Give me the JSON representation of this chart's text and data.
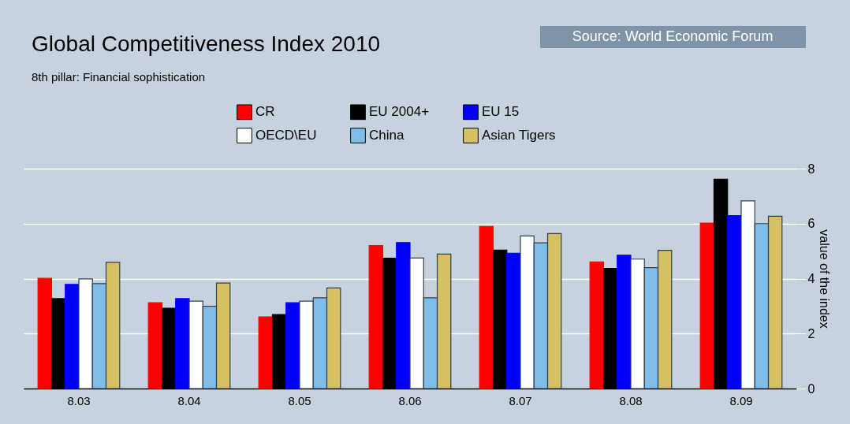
{
  "chart_data": {
    "type": "bar",
    "title": "Global Competitiveness Index 2010",
    "subtitle": "8th pillar: Financial sophistication",
    "ylabel": "value of the index",
    "annotations": [
      "Source: World Economic Forum"
    ],
    "categories": [
      "8.03",
      "8.04",
      "8.05",
      "8.06",
      "8.07",
      "8.08",
      "8.09"
    ],
    "series": [
      {
        "name": "CR",
        "color": "#ff0000",
        "values": [
          4.01,
          3.12,
          2.61,
          5.2,
          5.9,
          4.61,
          6.02
        ]
      },
      {
        "name": "EU 2004+",
        "color": "#000000",
        "values": [
          3.27,
          2.92,
          2.69,
          4.74,
          5.04,
          4.37,
          7.62
        ]
      },
      {
        "name": "EU 15",
        "color": "#0000ff",
        "values": [
          3.79,
          3.27,
          3.12,
          5.31,
          4.92,
          4.85,
          6.29
        ]
      },
      {
        "name": "OECD\\EU",
        "color": "#ffffff",
        "values": [
          3.99,
          3.18,
          3.18,
          4.75,
          5.55,
          4.71,
          6.83
        ]
      },
      {
        "name": "China",
        "color": "#80bde8",
        "values": [
          3.82,
          2.99,
          3.3,
          3.3,
          5.3,
          4.4,
          6.0
        ]
      },
      {
        "name": "Asian Tigers",
        "color": "#d6c064",
        "values": [
          4.59,
          3.84,
          3.66,
          4.89,
          5.64,
          5.03,
          6.27
        ]
      }
    ],
    "ylim": [
      0,
      8
    ],
    "yticks": [
      0,
      2,
      4,
      6,
      8
    ],
    "grid": "y",
    "legend": "top"
  }
}
